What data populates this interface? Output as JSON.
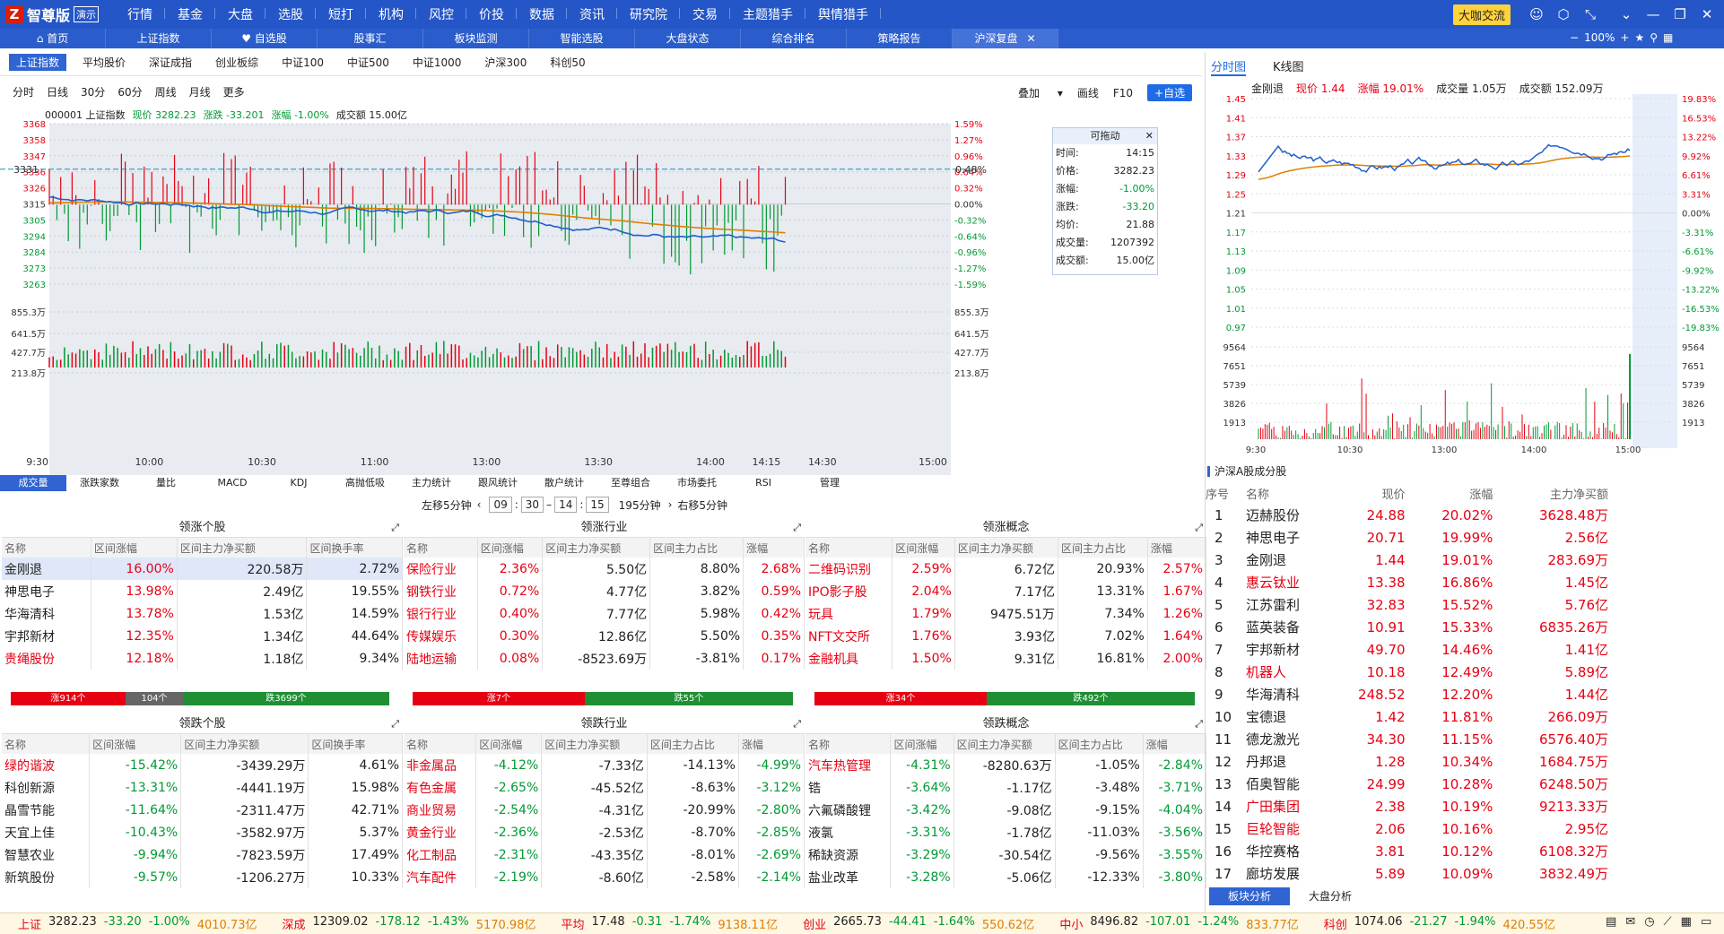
{
  "app": {
    "name": "智尊版",
    "demo": "演示",
    "vip": "大咖交流",
    "zoom": "100%"
  },
  "topmenu": [
    "行情",
    "基金",
    "大盘",
    "选股",
    "短打",
    "机构",
    "风控",
    "价投",
    "数据",
    "资讯",
    "研究院",
    "交易",
    "主题猎手",
    "舆情猎手"
  ],
  "tabs": [
    {
      "label": "首页"
    },
    {
      "label": "上证指数"
    },
    {
      "label": "自选股"
    },
    {
      "label": "股事汇"
    },
    {
      "label": "板块监测"
    },
    {
      "label": "智能选股"
    },
    {
      "label": "大盘状态"
    },
    {
      "label": "综合排名"
    },
    {
      "label": "策略报告"
    },
    {
      "label": "沪深复盘",
      "active": true
    }
  ],
  "index_tabs": [
    "上证指数",
    "平均股价",
    "深证成指",
    "创业板综",
    "中证100",
    "中证500",
    "中证1000",
    "沪深300",
    "科创50"
  ],
  "periods": [
    "分时",
    "日线",
    "30分",
    "60分",
    "周线",
    "月线",
    "更多"
  ],
  "right_controls": {
    "overlay": "叠加",
    "draw": "画线",
    "f10": "F10",
    "add": "+自选"
  },
  "chart_header": {
    "code": "000001 上证指数",
    "price": "现价 3282.23",
    "change": "涨跌 -33.201",
    "pct": "涨幅 -1.00%",
    "amount": "成交额 15.00亿"
  },
  "main_chart": {
    "y_left": [
      "3368",
      "3358",
      "3347",
      "3336",
      "3326",
      "3315",
      "3305",
      "3294",
      "3284",
      "3273",
      "3263"
    ],
    "y_right": [
      "1.59%",
      "1.27%",
      "0.96%",
      "0.64%",
      "0.32%",
      "0.00%",
      "-0.32%",
      "-0.64%",
      "-0.96%",
      "-1.27%",
      "-1.59%"
    ],
    "vol_left": [
      "855.3万",
      "641.5万",
      "427.7万",
      "213.8万"
    ],
    "vol_right": [
      "855.3万",
      "641.5万",
      "427.7万",
      "213.8万"
    ],
    "x": [
      "9:30",
      "10:00",
      "10:30",
      "11:00",
      "13:00",
      "13:30",
      "14:00",
      "14:15",
      "14:30",
      "15:00"
    ],
    "cross_y": "3331",
    "cross_pct": "0.48%"
  },
  "float_box": {
    "title": "可拖动",
    "rows": [
      [
        "时间:",
        "14:15"
      ],
      [
        "价格:",
        "3282.23"
      ],
      [
        "涨幅:",
        "-1.00%"
      ],
      [
        "涨跌:",
        "-33.20"
      ],
      [
        "均价:",
        "21.88"
      ],
      [
        "成交量:",
        "1207392"
      ],
      [
        "成交额:",
        "15.00亿"
      ]
    ]
  },
  "indicator_tabs": [
    "成交量",
    "涨跌家数",
    "量比",
    "MACD",
    "KDJ",
    "高抛低吸",
    "主力统计",
    "跟风统计",
    "散户统计",
    "至尊组合",
    "市场委托",
    "RSI",
    "管理"
  ],
  "shift": {
    "left": "左移5分钟",
    "h1": "09",
    "m1": "30",
    "h2": "14",
    "m2": "15",
    "range": "195分钟",
    "right": "右移5分钟"
  },
  "panels_top": [
    {
      "title": "领涨个股",
      "cols": [
        "名称",
        "区间涨幅",
        "区间主力净买额",
        "区间换手率"
      ],
      "rows": [
        [
          "金刚退",
          "16.00%",
          "220.58万",
          "2.72%"
        ],
        [
          "神思电子",
          "13.98%",
          "2.49亿",
          "19.55%"
        ],
        [
          "华海清科",
          "13.78%",
          "1.53亿",
          "14.59%"
        ],
        [
          "宇邦新材",
          "12.35%",
          "1.34亿",
          "44.64%"
        ],
        [
          "贵绳股份",
          "12.18%",
          "1.18亿",
          "9.34%"
        ]
      ],
      "bar": [
        "涨914个",
        "104个",
        "跌3699个"
      ]
    },
    {
      "title": "领涨行业",
      "cols": [
        "名称",
        "区间涨幅",
        "区间主力净买额",
        "区间主力占比",
        "涨幅"
      ],
      "rows": [
        [
          "保险行业",
          "2.36%",
          "5.50亿",
          "8.80%",
          "2.68%"
        ],
        [
          "钢铁行业",
          "0.72%",
          "4.77亿",
          "3.82%",
          "0.59%"
        ],
        [
          "银行行业",
          "0.40%",
          "7.77亿",
          "5.98%",
          "0.42%"
        ],
        [
          "传媒娱乐",
          "0.30%",
          "12.86亿",
          "5.50%",
          "0.35%"
        ],
        [
          "陆地运输",
          "0.08%",
          "-8523.69万",
          "-3.81%",
          "0.17%"
        ]
      ],
      "bar": [
        "涨7个",
        "跌55个"
      ]
    },
    {
      "title": "领涨概念",
      "cols": [
        "名称",
        "区间涨幅",
        "区间主力净买额",
        "区间主力占比",
        "涨幅"
      ],
      "rows": [
        [
          "二维码识别",
          "2.59%",
          "6.72亿",
          "20.93%",
          "2.57%"
        ],
        [
          "IPO影子股",
          "2.04%",
          "7.17亿",
          "13.31%",
          "1.67%"
        ],
        [
          "玩具",
          "1.79%",
          "9475.51万",
          "7.34%",
          "1.26%"
        ],
        [
          "NFT文交所",
          "1.76%",
          "3.93亿",
          "7.02%",
          "1.64%"
        ],
        [
          "金融机具",
          "1.50%",
          "9.31亿",
          "16.81%",
          "2.00%"
        ]
      ],
      "bar": [
        "涨34个",
        "跌492个"
      ]
    }
  ],
  "panels_bottom": [
    {
      "title": "领跌个股",
      "cols": [
        "名称",
        "区间涨幅",
        "区间主力净买额",
        "区间换手率"
      ],
      "rows": [
        [
          "绿的谐波",
          "-15.42%",
          "-3439.29万",
          "4.61%"
        ],
        [
          "科创新源",
          "-13.31%",
          "-4441.19万",
          "15.98%"
        ],
        [
          "晶雪节能",
          "-11.64%",
          "-2311.47万",
          "42.71%"
        ],
        [
          "天宜上佳",
          "-10.43%",
          "-3582.97万",
          "5.37%"
        ],
        [
          "智慧农业",
          "-9.94%",
          "-7823.59万",
          "17.49%"
        ],
        [
          "新筑股份",
          "-9.57%",
          "-1206.27万",
          "10.33%"
        ]
      ]
    },
    {
      "title": "领跌行业",
      "cols": [
        "名称",
        "区间涨幅",
        "区间主力净买额",
        "区间主力占比",
        "涨幅"
      ],
      "rows": [
        [
          "非金属品",
          "-4.12%",
          "-7.33亿",
          "-14.13%",
          "-4.99%"
        ],
        [
          "有色金属",
          "-2.65%",
          "-45.52亿",
          "-8.63%",
          "-3.12%"
        ],
        [
          "商业贸易",
          "-2.54%",
          "-4.31亿",
          "-20.99%",
          "-2.80%"
        ],
        [
          "黄金行业",
          "-2.36%",
          "-2.53亿",
          "-8.70%",
          "-2.85%"
        ],
        [
          "化工制品",
          "-2.31%",
          "-43.35亿",
          "-8.01%",
          "-2.69%"
        ],
        [
          "汽车配件",
          "-2.19%",
          "-8.60亿",
          "-2.58%",
          "-2.14%"
        ]
      ]
    },
    {
      "title": "领跌概念",
      "cols": [
        "名称",
        "区间涨幅",
        "区间主力净买额",
        "区间主力占比",
        "涨幅"
      ],
      "rows": [
        [
          "汽车热管理",
          "-4.31%",
          "-8280.63万",
          "-1.05%",
          "-2.84%"
        ],
        [
          "锆",
          "-3.64%",
          "-1.17亿",
          "-3.48%",
          "-3.71%"
        ],
        [
          "六氟磷酸锂",
          "-3.42%",
          "-9.08亿",
          "-9.15%",
          "-4.04%"
        ],
        [
          "液氯",
          "-3.31%",
          "-1.78亿",
          "-11.03%",
          "-3.56%"
        ],
        [
          "稀缺资源",
          "-3.29%",
          "-30.54亿",
          "-9.56%",
          "-3.55%"
        ],
        [
          "盐业改革",
          "-3.28%",
          "-5.06亿",
          "-12.33%",
          "-3.80%"
        ]
      ]
    }
  ],
  "right_panel": {
    "tabs": [
      "分时图",
      "K线图"
    ],
    "info": {
      "name": "金刚退",
      "price": "现价 1.44",
      "pct": "涨幅 19.01%",
      "vol": "成交量 1.05万",
      "amt": "成交额 152.09万"
    },
    "y_left": [
      "1.45",
      "1.41",
      "1.37",
      "1.33",
      "1.29",
      "1.25",
      "1.21",
      "1.17",
      "1.13",
      "1.09",
      "1.05",
      "1.01",
      "0.97"
    ],
    "y_right": [
      "19.83%",
      "16.53%",
      "13.22%",
      "9.92%",
      "6.61%",
      "3.31%",
      "0.00%",
      "-3.31%",
      "-6.61%",
      "-9.92%",
      "-13.22%",
      "-16.53%",
      "-19.83%"
    ],
    "vol": [
      "9564",
      "7651",
      "5739",
      "3826",
      "1913"
    ],
    "x": [
      "9:30",
      "10:30",
      "13:00",
      "14:00",
      "15:00"
    ],
    "list_title": "沪深A股成分股",
    "list_cols": [
      "序号",
      "名称",
      "现价",
      "涨幅",
      "主力净买额"
    ],
    "list": [
      [
        "1",
        "迈赫股份",
        "24.88",
        "20.02%",
        "3628.48万"
      ],
      [
        "2",
        "神思电子",
        "20.71",
        "19.99%",
        "2.56亿"
      ],
      [
        "3",
        "金刚退",
        "1.44",
        "19.01%",
        "283.69万"
      ],
      [
        "4",
        "惠云钛业",
        "13.38",
        "16.86%",
        "1.45亿"
      ],
      [
        "5",
        "江苏雷利",
        "32.83",
        "15.52%",
        "5.76亿"
      ],
      [
        "6",
        "蓝英装备",
        "10.91",
        "15.33%",
        "6835.26万"
      ],
      [
        "7",
        "宇邦新材",
        "49.70",
        "14.46%",
        "1.41亿"
      ],
      [
        "8",
        "机器人",
        "10.18",
        "12.49%",
        "5.89亿"
      ],
      [
        "9",
        "华海清科",
        "248.52",
        "12.20%",
        "1.44亿"
      ],
      [
        "10",
        "宝德退",
        "1.42",
        "11.81%",
        "266.09万"
      ],
      [
        "11",
        "德龙激光",
        "34.30",
        "11.15%",
        "6576.40万"
      ],
      [
        "12",
        "丹邦退",
        "1.28",
        "10.34%",
        "1684.75万"
      ],
      [
        "13",
        "佰奥智能",
        "24.99",
        "10.28%",
        "6248.50万"
      ],
      [
        "14",
        "广田集团",
        "2.38",
        "10.19%",
        "9213.33万"
      ],
      [
        "15",
        "巨轮智能",
        "2.06",
        "10.16%",
        "2.95亿"
      ],
      [
        "16",
        "华控赛格",
        "3.81",
        "10.12%",
        "6108.32万"
      ],
      [
        "17",
        "廊坊发展",
        "5.89",
        "10.09%",
        "3832.49万"
      ]
    ],
    "bottom_tabs": [
      "板块分析",
      "大盘分析"
    ]
  },
  "status": [
    [
      "上证",
      "3282.23",
      "-33.20",
      "-1.00%",
      "4010.73亿"
    ],
    [
      "深成",
      "12309.02",
      "-178.12",
      "-1.43%",
      "5170.98亿"
    ],
    [
      "平均",
      "17.48",
      "-0.31",
      "-1.74%",
      "9138.11亿"
    ],
    [
      "创业",
      "2665.73",
      "-44.41",
      "-1.64%",
      "550.62亿"
    ],
    [
      "中小",
      "8496.82",
      "-107.01",
      "-1.24%",
      "833.77亿"
    ],
    [
      "科创",
      "1074.06",
      "-21.27",
      "-1.94%",
      "420.55亿"
    ]
  ],
  "colors": {
    "up": "#e60012",
    "down": "#009933",
    "price_line": "#1e5fcf",
    "avg_line": "#e07f00",
    "accent": "#2456c7"
  }
}
